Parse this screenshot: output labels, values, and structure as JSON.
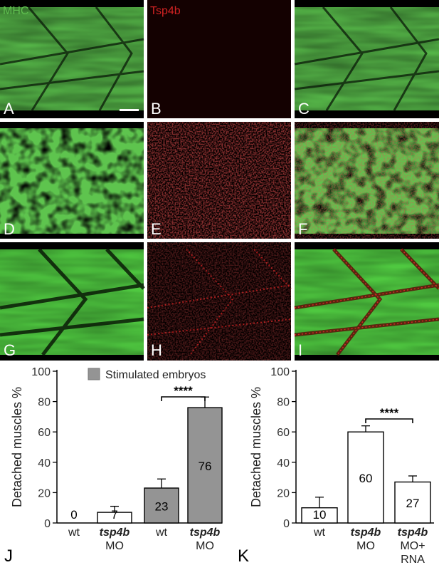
{
  "figure": {
    "channel_labels": {
      "mhc": "MHC",
      "tsp4b": "Tsp4b"
    },
    "colors": {
      "mhc": "#5fbf4f",
      "tsp4b": "#d22323"
    },
    "panel_letters": [
      "A",
      "B",
      "C",
      "D",
      "E",
      "F",
      "G",
      "H",
      "I"
    ],
    "chart_letters": {
      "j": "J",
      "k": "K"
    }
  },
  "chart_data": [
    {
      "type": "bar",
      "ylabel": "Detached muscles %",
      "ylim": [
        0,
        100
      ],
      "yticks": [
        0,
        20,
        40,
        60,
        80,
        100
      ],
      "categories": [
        [
          "wt"
        ],
        [
          "tsp4b",
          "MO"
        ],
        [
          "wt"
        ],
        [
          "tsp4b",
          "MO"
        ]
      ],
      "values": [
        0,
        7,
        23,
        76
      ],
      "errors": [
        0,
        4,
        6,
        7
      ],
      "stimulated": [
        false,
        false,
        true,
        true
      ],
      "legend": "Stimulated embryos",
      "legend_position": "top-right",
      "significance": {
        "from": 2,
        "to": 3,
        "label": "****"
      }
    },
    {
      "type": "bar",
      "ylabel": "Detached muscles %",
      "ylim": [
        0,
        100
      ],
      "yticks": [
        0,
        20,
        40,
        60,
        80,
        100
      ],
      "categories": [
        [
          "wt"
        ],
        [
          "tsp4b",
          "MO"
        ],
        [
          "tsp4b",
          "MO+",
          "RNA"
        ]
      ],
      "values": [
        10,
        60,
        27
      ],
      "errors": [
        7,
        4,
        4
      ],
      "significance": {
        "from": 1,
        "to": 2,
        "label": "****"
      }
    }
  ]
}
